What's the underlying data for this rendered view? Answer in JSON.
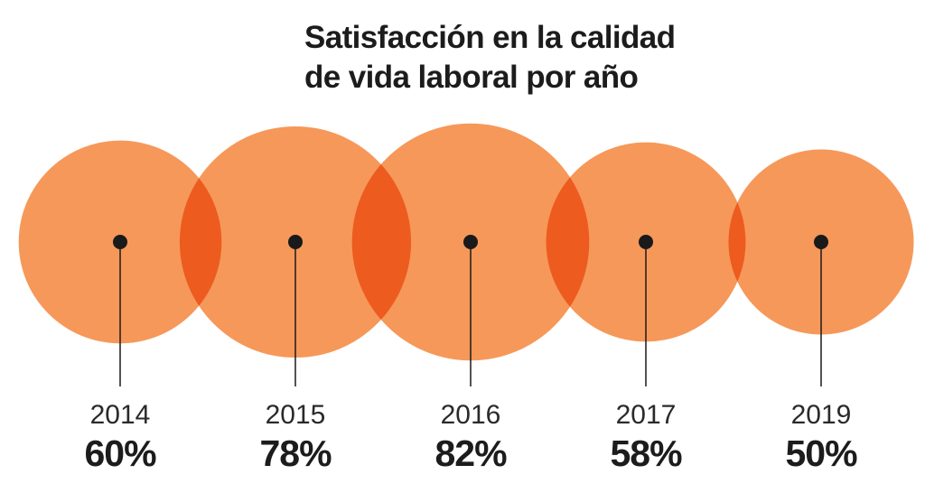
{
  "chart_data": {
    "type": "bubble",
    "title_lines": [
      "Satisfacción en la calidad",
      "de vida laboral por año"
    ],
    "categories": [
      "2014",
      "2015",
      "2016",
      "2017",
      "2019"
    ],
    "values": [
      60,
      78,
      82,
      58,
      50
    ],
    "value_labels": [
      "60%",
      "78%",
      "82%",
      "58%",
      "50%"
    ],
    "unit": "%",
    "colors": {
      "bubble": "#f58f4b",
      "overlap": "#e95e2e",
      "marker": "#1a1a1a",
      "text": "#1c1c1c"
    }
  }
}
